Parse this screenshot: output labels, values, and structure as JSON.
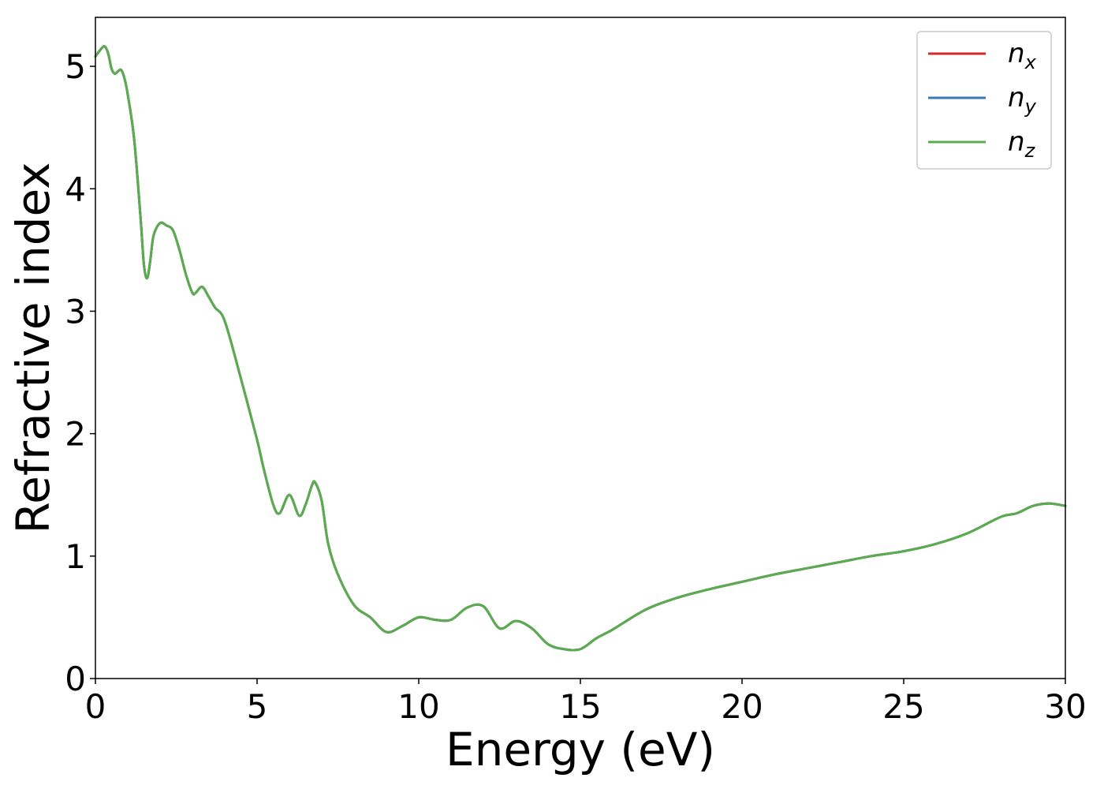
{
  "chart_data": {
    "type": "line",
    "title": "",
    "xlabel": "Energy (eV)",
    "ylabel": "Refractive index",
    "xlim": [
      0,
      30
    ],
    "ylim": [
      0,
      5.4
    ],
    "xticks": [
      0,
      5,
      10,
      15,
      20,
      25,
      30
    ],
    "yticks": [
      0,
      1,
      2,
      3,
      4,
      5
    ],
    "grid": false,
    "legend_position": "top-right",
    "series": [
      {
        "name": "n_x",
        "label_main": "n",
        "label_sub": "x",
        "color": "#d62728",
        "x": [
          0,
          0.2,
          0.3,
          0.4,
          0.5,
          0.6,
          0.7,
          0.8,
          0.9,
          1.0,
          1.2,
          1.4,
          1.5,
          1.6,
          1.7,
          1.8,
          2.0,
          2.2,
          2.4,
          2.6,
          2.8,
          3.0,
          3.1,
          3.3,
          3.5,
          3.7,
          4.0,
          4.5,
          5.0,
          5.2,
          5.5,
          5.7,
          6.0,
          6.3,
          6.5,
          6.7,
          6.8,
          7.0,
          7.2,
          7.5,
          8.0,
          8.5,
          9.0,
          9.5,
          10.0,
          10.5,
          11.0,
          11.5,
          12.0,
          12.5,
          13.0,
          13.5,
          14.0,
          14.5,
          15.0,
          15.5,
          16.0,
          17.0,
          18.0,
          19.0,
          20.0,
          21.0,
          22.0,
          23.0,
          24.0,
          25.0,
          26.0,
          27.0,
          28.0,
          28.5,
          29.0,
          29.5,
          30.0
        ],
        "y": [
          5.08,
          5.15,
          5.16,
          5.1,
          4.98,
          4.94,
          4.96,
          4.97,
          4.9,
          4.77,
          4.4,
          3.75,
          3.38,
          3.27,
          3.42,
          3.62,
          3.72,
          3.7,
          3.66,
          3.5,
          3.3,
          3.15,
          3.15,
          3.2,
          3.12,
          3.03,
          2.92,
          2.45,
          1.95,
          1.72,
          1.42,
          1.35,
          1.5,
          1.33,
          1.42,
          1.58,
          1.6,
          1.45,
          1.1,
          0.85,
          0.6,
          0.5,
          0.38,
          0.43,
          0.5,
          0.48,
          0.48,
          0.58,
          0.59,
          0.41,
          0.47,
          0.41,
          0.28,
          0.24,
          0.24,
          0.33,
          0.4,
          0.56,
          0.66,
          0.73,
          0.79,
          0.85,
          0.9,
          0.95,
          1.0,
          1.04,
          1.1,
          1.19,
          1.32,
          1.35,
          1.41,
          1.43,
          1.41
        ]
      },
      {
        "name": "n_y",
        "label_main": "n",
        "label_sub": "y",
        "color": "#377eb8",
        "x": [
          0,
          0.2,
          0.3,
          0.4,
          0.5,
          0.6,
          0.7,
          0.8,
          0.9,
          1.0,
          1.2,
          1.4,
          1.5,
          1.6,
          1.7,
          1.8,
          2.0,
          2.2,
          2.4,
          2.6,
          2.8,
          3.0,
          3.1,
          3.3,
          3.5,
          3.7,
          4.0,
          4.5,
          5.0,
          5.2,
          5.5,
          5.7,
          6.0,
          6.3,
          6.5,
          6.7,
          6.8,
          7.0,
          7.2,
          7.5,
          8.0,
          8.5,
          9.0,
          9.5,
          10.0,
          10.5,
          11.0,
          11.5,
          12.0,
          12.5,
          13.0,
          13.5,
          14.0,
          14.5,
          15.0,
          15.5,
          16.0,
          17.0,
          18.0,
          19.0,
          20.0,
          21.0,
          22.0,
          23.0,
          24.0,
          25.0,
          26.0,
          27.0,
          28.0,
          28.5,
          29.0,
          29.5,
          30.0
        ],
        "y": [
          5.08,
          5.15,
          5.16,
          5.1,
          4.98,
          4.94,
          4.96,
          4.97,
          4.9,
          4.77,
          4.4,
          3.75,
          3.38,
          3.27,
          3.42,
          3.62,
          3.72,
          3.7,
          3.66,
          3.5,
          3.3,
          3.15,
          3.15,
          3.2,
          3.12,
          3.03,
          2.92,
          2.45,
          1.95,
          1.72,
          1.42,
          1.35,
          1.5,
          1.33,
          1.42,
          1.58,
          1.6,
          1.45,
          1.1,
          0.85,
          0.6,
          0.5,
          0.38,
          0.43,
          0.5,
          0.48,
          0.48,
          0.58,
          0.59,
          0.41,
          0.47,
          0.41,
          0.28,
          0.24,
          0.24,
          0.33,
          0.4,
          0.56,
          0.66,
          0.73,
          0.79,
          0.85,
          0.9,
          0.95,
          1.0,
          1.04,
          1.1,
          1.19,
          1.32,
          1.35,
          1.41,
          1.43,
          1.41
        ]
      },
      {
        "name": "n_z",
        "label_main": "n",
        "label_sub": "z",
        "color": "#5aac4e",
        "x": [
          0,
          0.2,
          0.3,
          0.4,
          0.5,
          0.6,
          0.7,
          0.8,
          0.9,
          1.0,
          1.2,
          1.4,
          1.5,
          1.6,
          1.7,
          1.8,
          2.0,
          2.2,
          2.4,
          2.6,
          2.8,
          3.0,
          3.1,
          3.3,
          3.5,
          3.7,
          4.0,
          4.5,
          5.0,
          5.2,
          5.5,
          5.7,
          6.0,
          6.3,
          6.5,
          6.7,
          6.8,
          7.0,
          7.2,
          7.5,
          8.0,
          8.5,
          9.0,
          9.5,
          10.0,
          10.5,
          11.0,
          11.5,
          12.0,
          12.5,
          13.0,
          13.5,
          14.0,
          14.5,
          15.0,
          15.5,
          16.0,
          17.0,
          18.0,
          19.0,
          20.0,
          21.0,
          22.0,
          23.0,
          24.0,
          25.0,
          26.0,
          27.0,
          28.0,
          28.5,
          29.0,
          29.5,
          30.0
        ],
        "y": [
          5.08,
          5.15,
          5.16,
          5.1,
          4.98,
          4.94,
          4.96,
          4.97,
          4.9,
          4.77,
          4.4,
          3.75,
          3.38,
          3.27,
          3.42,
          3.62,
          3.72,
          3.7,
          3.66,
          3.5,
          3.3,
          3.15,
          3.15,
          3.2,
          3.12,
          3.03,
          2.92,
          2.45,
          1.95,
          1.72,
          1.42,
          1.35,
          1.5,
          1.33,
          1.42,
          1.58,
          1.6,
          1.45,
          1.1,
          0.85,
          0.6,
          0.5,
          0.38,
          0.43,
          0.5,
          0.48,
          0.48,
          0.58,
          0.59,
          0.41,
          0.47,
          0.41,
          0.28,
          0.24,
          0.24,
          0.33,
          0.4,
          0.56,
          0.66,
          0.73,
          0.79,
          0.85,
          0.9,
          0.95,
          1.0,
          1.04,
          1.1,
          1.19,
          1.32,
          1.35,
          1.41,
          1.43,
          1.41
        ]
      }
    ]
  }
}
